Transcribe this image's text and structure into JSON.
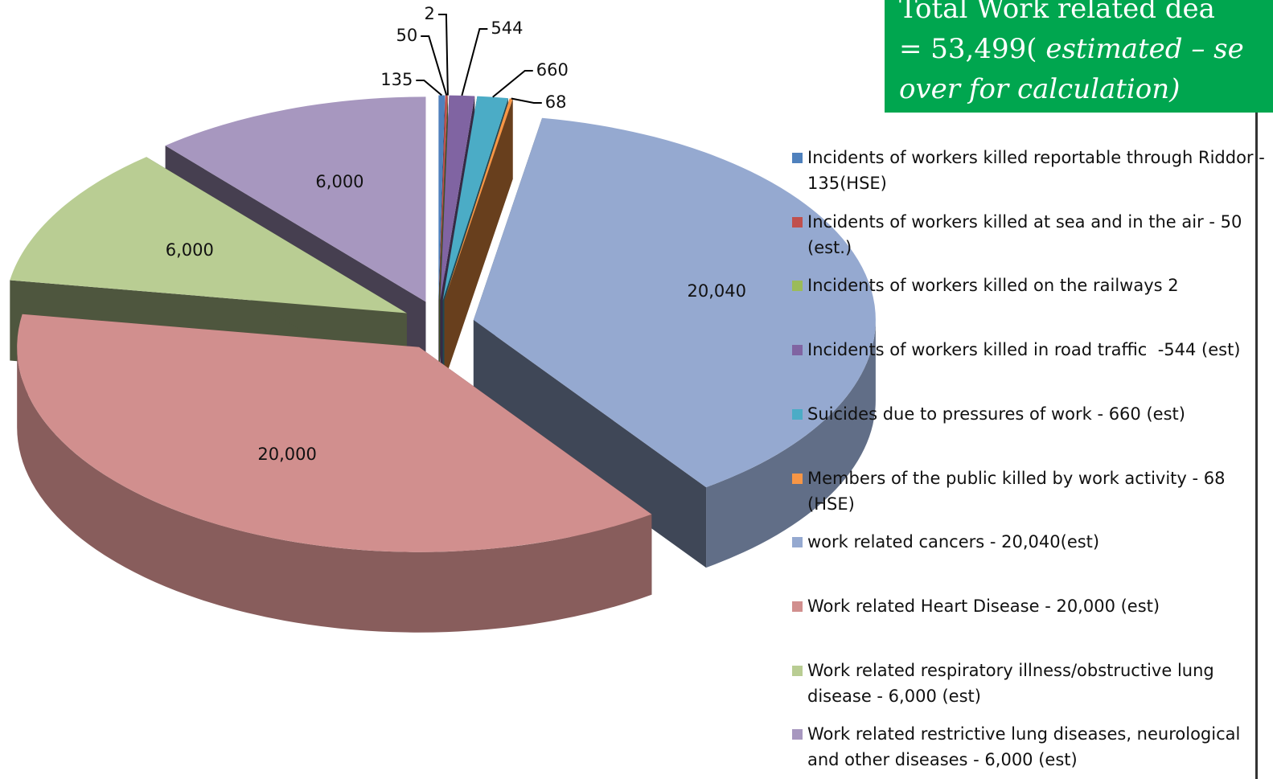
{
  "chart_data": {
    "type": "pie3d",
    "categories": [
      "Incidents of workers killed reportable through Riddor - 135(HSE)",
      "Incidents of workers killed at sea and in the air - 50 (est.)",
      "Incidents of workers killed on the railways 2",
      "Incidents of workers killed in road traffic  -544 (est)",
      "Suicides due to pressures of work - 660 (est)",
      "Members of the public killed by work activity - 68 (HSE)",
      "work related cancers - 20,040(est)",
      "Work related Heart Disease - 20,000 (est)",
      "Work related respiratory illness/obstructive lung disease - 6,000 (est)",
      "Work related restrictive lung diseases, neurological and other diseases - 6,000 (est)"
    ],
    "values": [
      135,
      50,
      2,
      544,
      660,
      68,
      20040,
      20000,
      6000,
      6000
    ],
    "value_labels": [
      "135",
      "50",
      "2",
      "544",
      "660",
      "68",
      "20,040",
      "20,000",
      "6,000",
      "6,000"
    ],
    "colors": [
      "#4f81bd",
      "#c0504d",
      "#9bbb59",
      "#8064a2",
      "#4bacc6",
      "#f79646",
      "#95a9d0",
      "#d18f8e",
      "#b9cd93",
      "#a797bf"
    ],
    "legend": "right",
    "annotation": [
      [
        "Total Work related dea"
      ],
      [
        "= 53,499(",
        " estimated – se"
      ],
      [
        "over for calculation",
        ")"
      ]
    ]
  }
}
